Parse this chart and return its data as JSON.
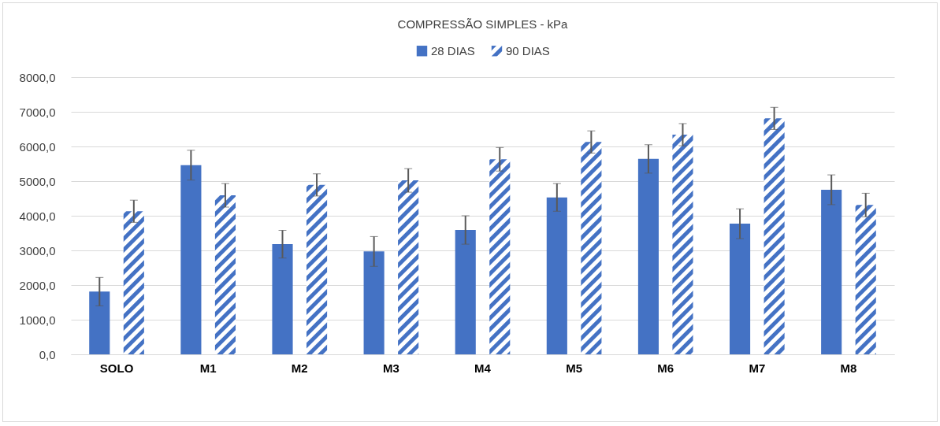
{
  "chart_data": {
    "type": "bar",
    "title": "COMPRESSÃO SIMPLES - kPa",
    "categories": [
      "SOLO",
      "M1",
      "M2",
      "M3",
      "M4",
      "M5",
      "M6",
      "M7",
      "M8"
    ],
    "series": [
      {
        "name": "28 DIAS",
        "color": "#4472c4",
        "values": [
          1810,
          5460,
          3180,
          2970,
          3590,
          4530,
          5640,
          3770,
          4750
        ],
        "errors": [
          410,
          430,
          400,
          430,
          410,
          400,
          410,
          430,
          430
        ]
      },
      {
        "name": "90 DIAS",
        "color": "#4472c4",
        "values": [
          4130,
          4590,
          4890,
          5020,
          5630,
          6130,
          6340,
          6810,
          4310
        ],
        "errors": [
          320,
          340,
          320,
          340,
          340,
          320,
          320,
          320,
          340
        ]
      }
    ],
    "ylim": [
      0,
      8000
    ],
    "yticks": [
      {
        "value": 0,
        "label": "0,0"
      },
      {
        "value": 1000,
        "label": "1000,0"
      },
      {
        "value": 2000,
        "label": "2000,0"
      },
      {
        "value": 3000,
        "label": "3000,0"
      },
      {
        "value": 4000,
        "label": "4000,0"
      },
      {
        "value": 5000,
        "label": "5000,0"
      },
      {
        "value": 6000,
        "label": "6000,0"
      },
      {
        "value": 7000,
        "label": "7000,0"
      },
      {
        "value": 8000,
        "label": "8000,0"
      }
    ],
    "grid": "y",
    "legend": "top"
  }
}
